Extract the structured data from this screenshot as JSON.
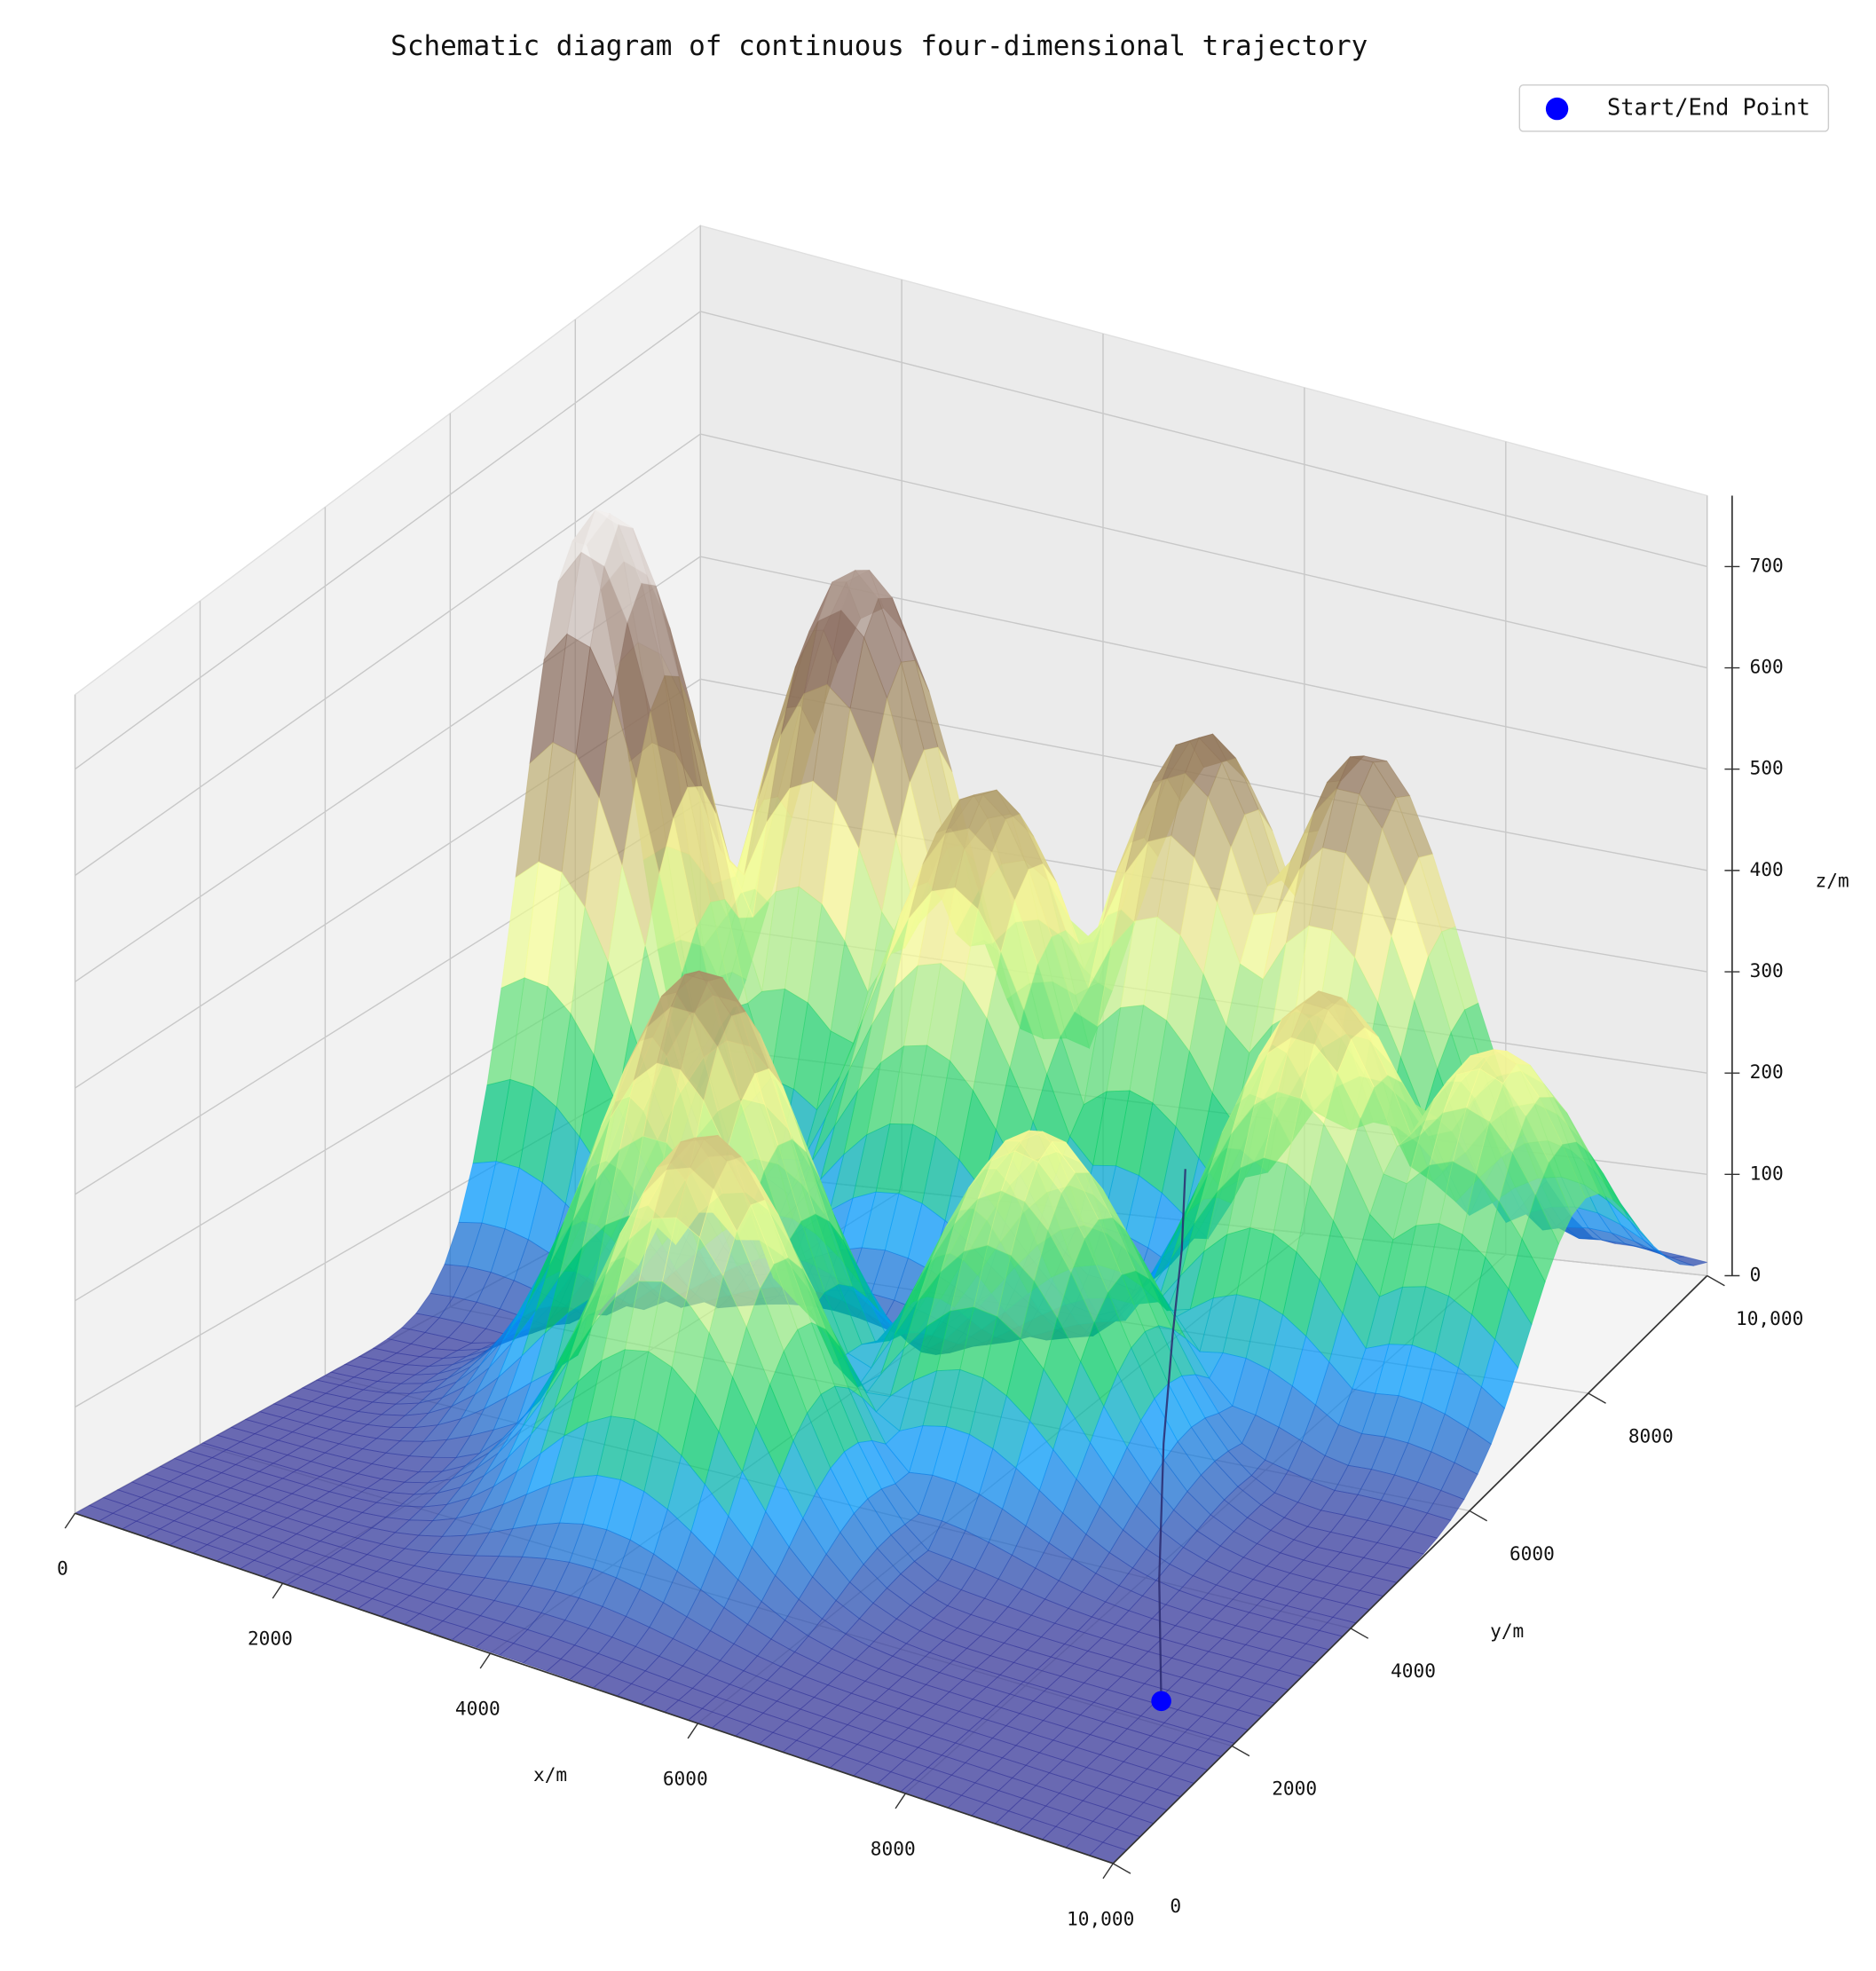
{
  "chart_data": {
    "type": "surface3d",
    "title": "Schematic diagram of continuous four-dimensional trajectory",
    "xlabel": "x/m",
    "ylabel": "y/m",
    "zlabel": "z/m",
    "xlim": [
      0,
      10000
    ],
    "ylim": [
      0,
      10000
    ],
    "zlim": [
      0,
      770
    ],
    "xticks": [
      0,
      2000,
      4000,
      6000,
      8000,
      {
        "value": 10000,
        "label": "10,000"
      }
    ],
    "yticks": [
      0,
      2000,
      4000,
      6000,
      8000,
      {
        "value": 10000,
        "label": "10,000"
      }
    ],
    "zticks": [
      0,
      100,
      200,
      300,
      400,
      500,
      600,
      700
    ],
    "grid": true,
    "legend": "upper right",
    "colormap": [
      [
        0,
        "#333399"
      ],
      [
        0.15,
        "#0099ff"
      ],
      [
        0.25,
        "#00cc66"
      ],
      [
        0.5,
        "#ffff99"
      ],
      [
        0.75,
        "#806050"
      ],
      [
        1,
        "#ffffff"
      ]
    ],
    "surface": {
      "peaks": [
        {
          "x": 300,
          "y": 8000,
          "z": 620
        },
        {
          "x": 1800,
          "y": 9600,
          "z": 540
        },
        {
          "x": 3600,
          "y": 8700,
          "z": 420
        },
        {
          "x": 5200,
          "y": 9600,
          "z": 460
        },
        {
          "x": 6700,
          "y": 9800,
          "z": 460
        },
        {
          "x": 3300,
          "y": 4600,
          "z": 430
        },
        {
          "x": 4300,
          "y": 3000,
          "z": 380
        },
        {
          "x": 6200,
          "y": 5200,
          "z": 330
        },
        {
          "x": 7600,
          "y": 7600,
          "z": 370
        },
        {
          "x": 9100,
          "y": 7900,
          "z": 330
        }
      ]
    },
    "trajectory": {
      "color": "#2a2a6e",
      "x": [
        9200,
        8600,
        8000,
        7500,
        7000,
        6500
      ],
      "y": [
        2200,
        3200,
        4300,
        5300,
        6300,
        7200
      ],
      "z": [
        10,
        60,
        120,
        160,
        180,
        200
      ]
    },
    "series": [
      {
        "name": "Start/End Point",
        "color": "#0000ff",
        "x": [
          9200
        ],
        "y": [
          2200
        ],
        "z": [
          10
        ]
      }
    ]
  }
}
